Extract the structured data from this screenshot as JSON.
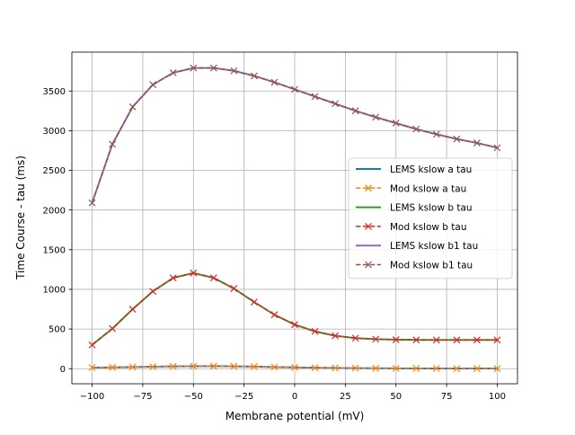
{
  "chart_data": {
    "type": "line",
    "title": "",
    "xlabel": "Membrane potential (mV)",
    "ylabel": "Time Course - tau (ms)",
    "xlim": [
      -110,
      110
    ],
    "ylim": [
      -190,
      3990
    ],
    "xticks": [
      -100,
      -75,
      -50,
      -25,
      0,
      25,
      50,
      75,
      100
    ],
    "yticks": [
      0,
      500,
      1000,
      1500,
      2000,
      2500,
      3000,
      3500
    ],
    "grid": true,
    "legend_position": "center-right",
    "x": [
      -100,
      -90,
      -80,
      -70,
      -60,
      -50,
      -40,
      -30,
      -20,
      -10,
      0,
      10,
      20,
      30,
      40,
      50,
      60,
      70,
      80,
      90,
      100
    ],
    "series": [
      {
        "name": "LEMS kslow a tau",
        "style": "solid",
        "marker": "none",
        "color": "#1f77b4",
        "values": [
          14,
          17,
          21,
          25,
          29,
          31,
          32,
          30,
          26,
          21,
          16,
          12,
          9,
          7,
          5,
          4,
          3,
          3,
          2,
          2,
          2
        ]
      },
      {
        "name": "Mod kslow a tau",
        "style": "dashed",
        "marker": "x",
        "color": "#ff7f0e",
        "values": [
          14,
          17,
          21,
          25,
          29,
          31,
          32,
          30,
          26,
          21,
          16,
          12,
          9,
          7,
          5,
          4,
          3,
          3,
          2,
          2,
          2
        ]
      },
      {
        "name": "LEMS kslow b tau",
        "style": "solid",
        "marker": "none",
        "color": "#2ca02c",
        "values": [
          300,
          505,
          750,
          975,
          1145,
          1205,
          1145,
          1010,
          840,
          680,
          555,
          470,
          415,
          385,
          372,
          366,
          363,
          362,
          362,
          362,
          362
        ]
      },
      {
        "name": "Mod kslow b tau",
        "style": "dashed",
        "marker": "x",
        "color": "#d62728",
        "values": [
          300,
          505,
          750,
          975,
          1145,
          1205,
          1145,
          1010,
          840,
          680,
          555,
          470,
          415,
          385,
          372,
          366,
          363,
          362,
          362,
          362,
          362
        ]
      },
      {
        "name": "LEMS kslow b1 tau",
        "style": "solid",
        "marker": "none",
        "color": "#9467bd",
        "values": [
          2090,
          2830,
          3300,
          3580,
          3730,
          3790,
          3790,
          3755,
          3690,
          3610,
          3520,
          3430,
          3340,
          3250,
          3170,
          3095,
          3020,
          2955,
          2895,
          2845,
          2785
        ]
      },
      {
        "name": "Mod kslow b1 tau",
        "style": "dashed",
        "marker": "x",
        "color": "#8c564b",
        "values": [
          2090,
          2830,
          3300,
          3580,
          3730,
          3790,
          3790,
          3755,
          3690,
          3610,
          3520,
          3430,
          3340,
          3250,
          3170,
          3095,
          3020,
          2955,
          2895,
          2845,
          2785
        ]
      }
    ]
  }
}
